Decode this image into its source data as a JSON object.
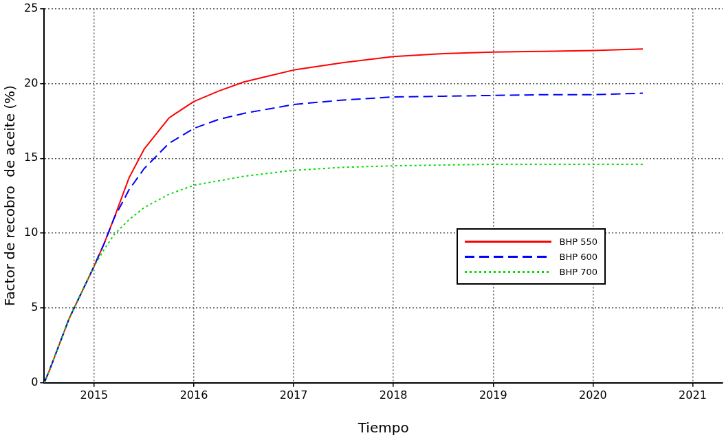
{
  "chart_data": {
    "type": "line",
    "xlabel": "Tiempo",
    "ylabel": "Factor de recobro  de aceite (%)",
    "xlim": [
      2014.5,
      2021.3
    ],
    "xticks": [
      2015,
      2016,
      2017,
      2018,
      2019,
      2020,
      2021
    ],
    "ylim": [
      0,
      25
    ],
    "yticks": [
      0,
      5,
      10,
      15,
      20,
      25
    ],
    "grid": true,
    "legend": "center right",
    "marker": "none",
    "x": [
      2014.5,
      2014.55,
      2014.75,
      2015,
      2015.1,
      2015.2,
      2015.35,
      2015.5,
      2015.75,
      2016,
      2016.25,
      2016.5,
      2016.75,
      2017,
      2017.5,
      2018,
      2018.5,
      2019,
      2019.5,
      2020,
      2020.5
    ],
    "series": [
      {
        "name": "BHP 550",
        "color": "#ff0000",
        "line_style": "solid",
        "values": [
          0,
          0.8,
          4.3,
          7.8,
          9.3,
          11.0,
          13.7,
          15.6,
          17.7,
          18.8,
          19.5,
          20.1,
          20.5,
          20.9,
          21.4,
          21.8,
          22.0,
          22.1,
          22.15,
          22.2,
          22.3
        ]
      },
      {
        "name": "BHP 600",
        "color": "#0000ff",
        "line_style": "dashed",
        "values": [
          0,
          0.8,
          4.3,
          7.8,
          9.3,
          11.0,
          12.9,
          14.3,
          16.0,
          17.0,
          17.6,
          18.0,
          18.3,
          18.6,
          18.9,
          19.1,
          19.15,
          19.2,
          19.25,
          19.25,
          19.35
        ]
      },
      {
        "name": "BHP 700",
        "color": "#00dd00",
        "line_style": "dotted",
        "values": [
          0,
          0.8,
          4.3,
          7.8,
          8.9,
          9.9,
          10.9,
          11.7,
          12.6,
          13.2,
          13.5,
          13.8,
          14.0,
          14.2,
          14.4,
          14.5,
          14.55,
          14.6,
          14.6,
          14.6,
          14.6
        ]
      }
    ]
  }
}
